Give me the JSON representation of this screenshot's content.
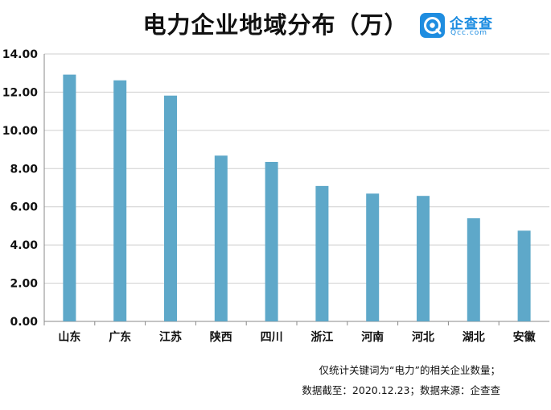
{
  "title": "电力企业地域分布（万）",
  "logo": {
    "name": "企查查",
    "sub": "Qcc.com",
    "color": "#1f8de0"
  },
  "chart_data": {
    "type": "bar",
    "title": "电力企业地域分布（万）",
    "xlabel": "",
    "ylabel": "",
    "categories": [
      "山东",
      "广东",
      "江苏",
      "陕西",
      "四川",
      "浙江",
      "河南",
      "河北",
      "湖北",
      "安徽"
    ],
    "values": [
      12.92,
      12.62,
      11.82,
      8.68,
      8.35,
      7.09,
      6.69,
      6.57,
      5.4,
      4.75
    ],
    "ylim": [
      0,
      14
    ],
    "yticks": [
      "0.00",
      "2.00",
      "4.00",
      "6.00",
      "8.00",
      "10.00",
      "12.00",
      "14.00"
    ],
    "grid": true,
    "bar_color": "#5ea8c9"
  },
  "notes": {
    "line1": "仅统计关键词为“电力”的相关企业数量；",
    "line2": "数据截至：2020.12.23；数据来源：企查查"
  }
}
